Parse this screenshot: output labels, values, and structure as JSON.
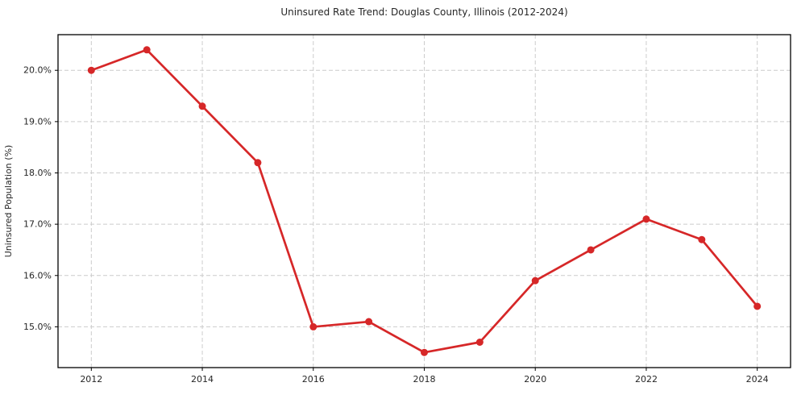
{
  "chart_data": {
    "type": "line",
    "title": "Uninsured Rate Trend: Douglas County, Illinois (2012-2024)",
    "xlabel": "",
    "ylabel": "Uninsured Population (%)",
    "x": [
      2012,
      2013,
      2014,
      2015,
      2016,
      2017,
      2018,
      2019,
      2020,
      2021,
      2022,
      2023,
      2024
    ],
    "values": [
      20.0,
      20.4,
      19.3,
      18.2,
      15.0,
      15.1,
      14.5,
      14.7,
      15.9,
      16.5,
      17.1,
      16.7,
      15.4
    ],
    "xlim": [
      2011.4,
      2024.6
    ],
    "ylim": [
      14.205,
      20.695
    ],
    "xticks": {
      "values": [
        2012,
        2014,
        2016,
        2018,
        2020,
        2022,
        2024
      ],
      "labels": [
        "2012",
        "2014",
        "2016",
        "2018",
        "2020",
        "2022",
        "2024"
      ]
    },
    "yticks": {
      "values": [
        15,
        16,
        17,
        18,
        19,
        20
      ],
      "labels": [
        "15.0%",
        "16.0%",
        "17.0%",
        "18.0%",
        "19.0%",
        "20.0%"
      ]
    },
    "grid": true,
    "grid_style": "dashed",
    "legend": "none",
    "marker": "circle"
  },
  "colors": {
    "line": "#d62728",
    "marker": "#d62728",
    "grid": "#cccccc",
    "spine": "#000000",
    "text": "#262626",
    "background": "#ffffff"
  }
}
